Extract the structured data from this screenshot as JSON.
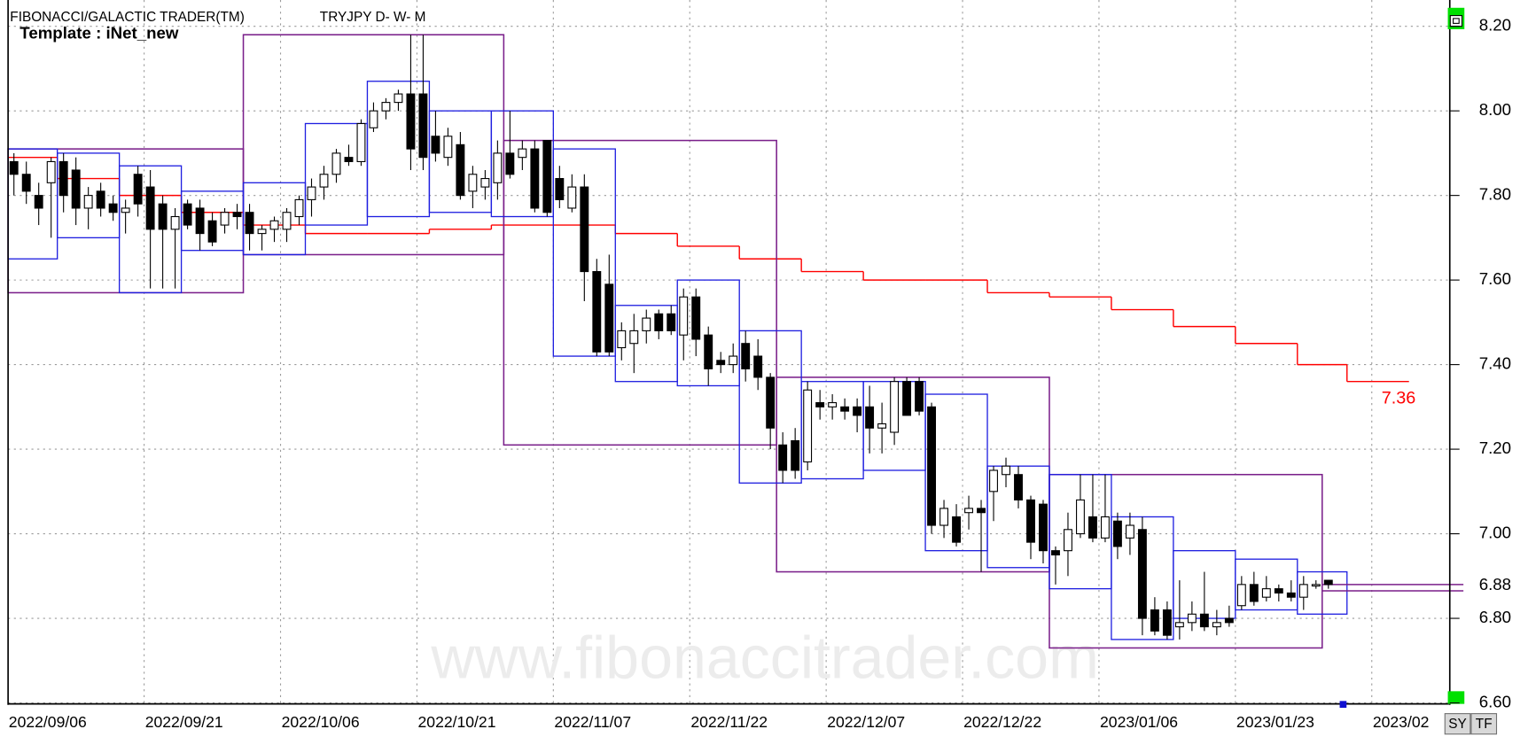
{
  "chart_data": {
    "type": "candlestick",
    "title": "FIBONACCI/GALACTIC TRADER(TM)",
    "subtitle": "TRYJPY D- W- M",
    "template": "Template : iNet_new",
    "watermark": "www.fibonaccitrader.com",
    "buttons": [
      "SY",
      "TF"
    ],
    "ylim": [
      6.6,
      8.2
    ],
    "yticks": [
      {
        "value": 6.6,
        "label": "6.60"
      },
      {
        "value": 6.8,
        "label": "6.80"
      },
      {
        "value": 7.0,
        "label": "7.00"
      },
      {
        "value": 7.2,
        "label": "7.20"
      },
      {
        "value": 7.4,
        "label": "7.40"
      },
      {
        "value": 7.6,
        "label": "7.60"
      },
      {
        "value": 7.8,
        "label": "7.80"
      },
      {
        "value": 8.0,
        "label": "8.00"
      },
      {
        "value": 8.2,
        "label": "8.20"
      }
    ],
    "grid": true,
    "categories": [
      "2022/09/06",
      null,
      null,
      null,
      null,
      null,
      null,
      null,
      null,
      null,
      null,
      "2022/09/21",
      null,
      null,
      null,
      null,
      null,
      null,
      null,
      null,
      null,
      null,
      "2022/10/06",
      null,
      null,
      null,
      null,
      null,
      null,
      null,
      null,
      null,
      null,
      "2022/10/21",
      null,
      null,
      null,
      null,
      null,
      null,
      null,
      null,
      null,
      null,
      "2022/11/07",
      null,
      null,
      null,
      null,
      null,
      null,
      null,
      null,
      null,
      null,
      "2022/11/22",
      null,
      null,
      null,
      null,
      null,
      null,
      null,
      null,
      null,
      null,
      "2022/12/07",
      null,
      null,
      null,
      null,
      null,
      null,
      null,
      null,
      null,
      null,
      "2022/12/22",
      null,
      null,
      null,
      null,
      null,
      null,
      null,
      null,
      null,
      null,
      "2023/01/06",
      null,
      null,
      null,
      null,
      null,
      null,
      null,
      null,
      null,
      null,
      "2023/01/23",
      null,
      null,
      null,
      null,
      null,
      null,
      null,
      null,
      null,
      null,
      "2023/02",
      null,
      null
    ],
    "open": [
      7.88,
      7.85,
      7.8,
      7.83,
      7.88,
      7.86,
      7.77,
      7.81,
      7.78,
      7.76,
      7.85,
      7.82,
      7.78,
      7.72,
      7.78,
      7.77,
      7.74,
      7.73,
      7.76,
      7.76,
      7.71,
      7.72,
      7.72,
      7.75,
      7.79,
      7.82,
      7.85,
      7.89,
      7.88,
      7.96,
      8.0,
      8.02,
      8.04,
      8.04,
      7.94,
      7.89,
      7.92,
      7.81,
      7.82,
      7.83,
      7.9,
      7.89,
      7.91,
      7.93,
      7.84,
      7.77,
      7.82,
      7.62,
      7.59,
      7.44,
      7.45,
      7.48,
      7.52,
      7.52,
      7.47,
      7.56,
      7.47,
      7.41,
      7.4,
      7.45,
      7.42,
      7.37,
      7.21,
      7.22,
      7.17,
      7.31,
      7.3,
      7.3,
      7.3,
      7.3,
      7.25,
      7.24,
      7.36,
      7.36,
      7.3,
      7.02,
      7.04,
      7.05,
      7.06,
      7.1,
      7.14,
      7.14,
      7.08,
      7.07,
      6.96,
      6.96,
      7.0,
      7.04,
      6.99,
      7.03,
      6.99,
      7.01,
      6.82,
      6.82,
      6.78,
      6.79,
      6.81,
      6.78,
      6.8,
      6.83,
      6.88,
      6.85,
      6.87,
      6.86,
      6.85,
      6.88,
      6.89,
      null,
      null,
      null,
      null,
      null,
      null
    ],
    "high": [
      7.9,
      7.88,
      7.83,
      7.89,
      7.9,
      7.89,
      7.82,
      7.83,
      7.8,
      7.79,
      7.87,
      7.86,
      7.8,
      7.77,
      7.79,
      7.79,
      7.76,
      7.77,
      7.78,
      7.78,
      7.73,
      7.75,
      7.77,
      7.8,
      7.84,
      7.87,
      7.91,
      7.92,
      7.98,
      8.02,
      8.03,
      8.05,
      8.18,
      8.18,
      8.0,
      7.96,
      7.95,
      7.87,
      7.86,
      7.93,
      8.0,
      7.93,
      7.93,
      7.93,
      7.87,
      7.85,
      7.85,
      7.65,
      7.66,
      7.5,
      7.52,
      7.53,
      7.53,
      7.54,
      7.58,
      7.58,
      7.49,
      7.43,
      7.45,
      7.48,
      7.46,
      7.38,
      7.24,
      7.25,
      7.36,
      7.34,
      7.33,
      7.32,
      7.32,
      7.35,
      7.31,
      7.37,
      7.37,
      7.37,
      7.31,
      7.08,
      7.07,
      7.09,
      7.08,
      7.16,
      7.18,
      7.16,
      7.09,
      7.08,
      6.97,
      7.05,
      7.14,
      7.14,
      7.14,
      7.05,
      7.05,
      7.04,
      6.85,
      6.84,
      6.89,
      6.84,
      6.91,
      6.82,
      6.83,
      6.9,
      6.91,
      6.9,
      6.88,
      6.89,
      6.9,
      6.89,
      6.89,
      null,
      null,
      null,
      null,
      null,
      null
    ],
    "low": [
      7.8,
      7.78,
      7.73,
      7.7,
      7.76,
      7.73,
      7.72,
      7.75,
      7.74,
      7.71,
      7.75,
      7.58,
      7.58,
      7.58,
      7.72,
      7.67,
      7.68,
      7.71,
      7.72,
      7.67,
      7.67,
      7.69,
      7.69,
      7.73,
      7.75,
      7.79,
      7.83,
      7.87,
      7.87,
      7.95,
      7.98,
      8.0,
      7.86,
      7.86,
      7.88,
      7.87,
      7.79,
      7.77,
      7.79,
      7.79,
      7.84,
      7.86,
      7.76,
      7.75,
      7.77,
      7.76,
      7.55,
      7.42,
      7.42,
      7.41,
      7.38,
      7.45,
      7.46,
      7.47,
      7.41,
      7.42,
      7.35,
      7.38,
      7.38,
      7.36,
      7.34,
      7.2,
      7.12,
      7.13,
      7.15,
      7.27,
      7.27,
      7.27,
      7.24,
      7.19,
      7.19,
      7.21,
      7.28,
      7.28,
      7.0,
      6.99,
      6.97,
      7.01,
      6.91,
      7.03,
      7.11,
      7.06,
      6.94,
      6.93,
      6.88,
      6.9,
      6.99,
      6.98,
      6.98,
      6.94,
      6.95,
      6.76,
      6.76,
      6.75,
      6.75,
      6.77,
      6.77,
      6.76,
      6.78,
      6.82,
      6.83,
      6.84,
      6.84,
      6.84,
      6.82,
      6.87,
      6.87,
      null,
      null,
      null,
      null,
      null,
      null
    ],
    "close": [
      7.85,
      7.81,
      7.77,
      7.88,
      7.8,
      7.77,
      7.8,
      7.77,
      7.76,
      7.77,
      7.78,
      7.72,
      7.72,
      7.75,
      7.73,
      7.71,
      7.69,
      7.76,
      7.75,
      7.71,
      7.72,
      7.74,
      7.76,
      7.79,
      7.82,
      7.85,
      7.9,
      7.88,
      7.97,
      8.0,
      8.02,
      8.04,
      7.91,
      7.89,
      7.9,
      7.94,
      7.8,
      7.85,
      7.84,
      7.9,
      7.85,
      7.91,
      7.77,
      7.76,
      7.79,
      7.82,
      7.62,
      7.43,
      7.43,
      7.48,
      7.48,
      7.51,
      7.48,
      7.48,
      7.56,
      7.46,
      7.39,
      7.4,
      7.42,
      7.39,
      7.37,
      7.25,
      7.15,
      7.15,
      7.34,
      7.3,
      7.31,
      7.29,
      7.28,
      7.25,
      7.26,
      7.36,
      7.28,
      7.29,
      7.02,
      7.06,
      6.98,
      7.06,
      7.05,
      7.15,
      7.16,
      7.08,
      6.98,
      6.96,
      6.95,
      7.01,
      7.08,
      6.99,
      7.04,
      6.97,
      7.02,
      6.8,
      6.77,
      6.76,
      6.79,
      6.81,
      6.78,
      6.79,
      6.79,
      6.88,
      6.84,
      6.87,
      6.86,
      6.85,
      6.88,
      6.88,
      6.88,
      null,
      null,
      null,
      null,
      null,
      null
    ],
    "weekly": {
      "color": "#1f1fe0",
      "ma_color": "#ff0000",
      "first": [
        0,
        4,
        9,
        14,
        19,
        24,
        29,
        34,
        39,
        44,
        49,
        54,
        59,
        64,
        69,
        74,
        79,
        84,
        89,
        94,
        99,
        104,
        108
      ],
      "last": [
        3,
        8,
        13,
        18,
        23,
        28,
        33,
        38,
        43,
        48,
        53,
        58,
        63,
        68,
        73,
        78,
        83,
        88,
        93,
        98,
        103,
        107,
        112
      ],
      "high": [
        7.91,
        7.9,
        7.87,
        7.81,
        7.83,
        7.97,
        8.07,
        8.0,
        8.0,
        7.91,
        7.54,
        7.6,
        7.48,
        7.36,
        7.36,
        7.33,
        7.16,
        7.14,
        7.04,
        6.96,
        6.94,
        6.91,
        null
      ],
      "low": [
        7.65,
        7.7,
        7.57,
        7.67,
        7.66,
        7.73,
        7.75,
        7.76,
        7.75,
        7.42,
        7.36,
        7.35,
        7.12,
        7.13,
        7.15,
        6.96,
        6.92,
        6.87,
        6.75,
        6.8,
        6.82,
        6.81,
        null
      ],
      "ma": [
        7.89,
        7.84,
        7.8,
        7.76,
        7.73,
        7.71,
        7.71,
        7.72,
        7.73,
        7.73,
        7.71,
        7.68,
        7.65,
        7.62,
        7.6,
        7.6,
        7.57,
        7.56,
        7.53,
        7.49,
        7.45,
        7.4,
        7.36
      ],
      "ma_value_label": "7.36"
    },
    "monthly": {
      "color": "#7a1f8a",
      "first": [
        0,
        19,
        40,
        62,
        84
      ],
      "last": [
        18,
        39,
        61,
        83,
        105
      ],
      "high": [
        7.91,
        8.18,
        7.93,
        7.37,
        7.14
      ],
      "low": [
        7.57,
        7.66,
        7.21,
        6.91,
        6.73
      ]
    },
    "projection": {
      "color": "#7a1f8a",
      "values": [
        6.88,
        6.865
      ],
      "value_label": "6.88"
    }
  }
}
